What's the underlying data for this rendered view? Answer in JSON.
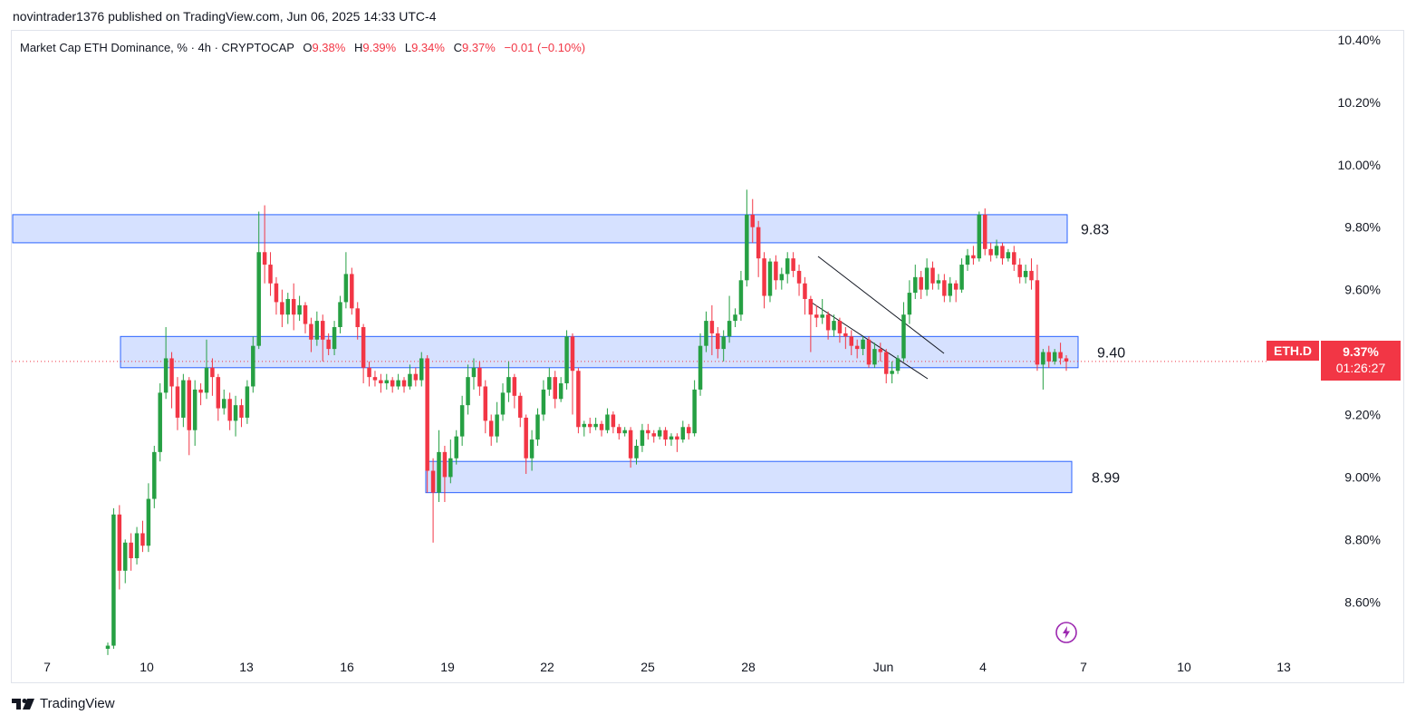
{
  "header": {
    "published": "novintrader1376 published on TradingView.com, Jun 06, 2025 14:33 UTC-4"
  },
  "legend": {
    "symbol": "Market Cap ETH Dominance, % · 4h · CRYPTOCAP",
    "open_label": "O",
    "open_value": "9.38%",
    "high_label": "H",
    "high_value": "9.39%",
    "low_label": "L",
    "low_value": "9.34%",
    "close_label": "C",
    "close_value": "9.37%",
    "change": "−0.01 (−0.10%)"
  },
  "price_tag": {
    "symbol": "ETH.D",
    "price": "9.37%",
    "countdown": "01:26:27"
  },
  "brand": {
    "name": "TradingView"
  },
  "colors": {
    "up": "#089981",
    "up_body": "#26a043",
    "down": "#f23645",
    "zone_fill": "#d2deff",
    "zone_stroke": "#2962ff"
  },
  "chart_data": {
    "type": "candlestick",
    "title": "Market Cap ETH Dominance, % · 4h · CRYPTOCAP",
    "y_unit": "%",
    "y_ticks": [
      "10.40%",
      "10.20%",
      "10.00%",
      "9.80%",
      "9.60%",
      "9.40%",
      "9.20%",
      "9.00%",
      "8.80%",
      "8.60%"
    ],
    "x_ticks": [
      "7",
      "10",
      "13",
      "16",
      "19",
      "22",
      "25",
      "28",
      "Jun",
      "4",
      "7",
      "10",
      "13"
    ],
    "ylim": [
      8.45,
      10.42
    ],
    "zones": [
      {
        "label": "9.83",
        "low": 9.75,
        "high": 9.84
      },
      {
        "label": "9.40",
        "low": 9.35,
        "high": 9.45
      },
      {
        "label": "8.99",
        "low": 8.95,
        "high": 9.05
      }
    ],
    "current_price": 9.37,
    "candles": [
      [
        8.45,
        8.46,
        8.47,
        8.43
      ],
      [
        8.46,
        8.88,
        8.9,
        8.45
      ],
      [
        8.88,
        8.7,
        8.91,
        8.64
      ],
      [
        8.7,
        8.79,
        8.8,
        8.66
      ],
      [
        8.79,
        8.74,
        8.82,
        8.7
      ],
      [
        8.74,
        8.82,
        8.84,
        8.72
      ],
      [
        8.82,
        8.78,
        8.86,
        8.76
      ],
      [
        8.78,
        8.93,
        8.98,
        8.76
      ],
      [
        8.93,
        9.08,
        9.1,
        8.9
      ],
      [
        9.08,
        9.27,
        9.3,
        9.05
      ],
      [
        9.27,
        9.38,
        9.48,
        9.25
      ],
      [
        9.38,
        9.29,
        9.4,
        9.22
      ],
      [
        9.29,
        9.19,
        9.32,
        9.15
      ],
      [
        9.19,
        9.31,
        9.33,
        9.16
      ],
      [
        9.31,
        9.15,
        9.32,
        9.07
      ],
      [
        9.15,
        9.28,
        9.31,
        9.1
      ],
      [
        9.28,
        9.27,
        9.3,
        9.23
      ],
      [
        9.27,
        9.35,
        9.44,
        9.25
      ],
      [
        9.35,
        9.32,
        9.38,
        9.26
      ],
      [
        9.32,
        9.22,
        9.33,
        9.18
      ],
      [
        9.22,
        9.25,
        9.28,
        9.2
      ],
      [
        9.25,
        9.18,
        9.27,
        9.15
      ],
      [
        9.18,
        9.23,
        9.26,
        9.13
      ],
      [
        9.23,
        9.19,
        9.25,
        9.16
      ],
      [
        9.19,
        9.29,
        9.31,
        9.17
      ],
      [
        9.29,
        9.42,
        9.45,
        9.27
      ],
      [
        9.42,
        9.72,
        9.85,
        9.41
      ],
      [
        9.72,
        9.68,
        9.87,
        9.62
      ],
      [
        9.68,
        9.62,
        9.72,
        9.58
      ],
      [
        9.62,
        9.56,
        9.64,
        9.52
      ],
      [
        9.56,
        9.52,
        9.6,
        9.48
      ],
      [
        9.52,
        9.57,
        9.59,
        9.49
      ],
      [
        9.57,
        9.52,
        9.62,
        9.47
      ],
      [
        9.52,
        9.55,
        9.58,
        9.5
      ],
      [
        9.55,
        9.49,
        9.56,
        9.46
      ],
      [
        9.49,
        9.44,
        9.51,
        9.4
      ],
      [
        9.44,
        9.5,
        9.53,
        9.42
      ],
      [
        9.5,
        9.44,
        9.52,
        9.37
      ],
      [
        9.44,
        9.41,
        9.46,
        9.39
      ],
      [
        9.41,
        9.48,
        9.5,
        9.39
      ],
      [
        9.48,
        9.56,
        9.58,
        9.46
      ],
      [
        9.56,
        9.65,
        9.72,
        9.54
      ],
      [
        9.65,
        9.54,
        9.67,
        9.52
      ],
      [
        9.54,
        9.48,
        9.56,
        9.44
      ],
      [
        9.48,
        9.35,
        9.49,
        9.3
      ],
      [
        9.35,
        9.32,
        9.37,
        9.29
      ],
      [
        9.32,
        9.31,
        9.34,
        9.29
      ],
      [
        9.31,
        9.3,
        9.33,
        9.27
      ],
      [
        9.3,
        9.31,
        9.33,
        9.28
      ],
      [
        9.31,
        9.29,
        9.32,
        9.27
      ],
      [
        9.29,
        9.31,
        9.33,
        9.28
      ],
      [
        9.31,
        9.29,
        9.32,
        9.27
      ],
      [
        9.29,
        9.33,
        9.36,
        9.28
      ],
      [
        9.33,
        9.31,
        9.35,
        9.29
      ],
      [
        9.31,
        9.38,
        9.4,
        9.29
      ],
      [
        9.38,
        9.02,
        9.39,
        8.95
      ],
      [
        9.02,
        8.95,
        9.06,
        8.79
      ],
      [
        8.95,
        9.08,
        9.15,
        8.92
      ],
      [
        9.08,
        9.0,
        9.1,
        8.92
      ],
      [
        9.0,
        9.06,
        9.12,
        8.98
      ],
      [
        9.06,
        9.13,
        9.15,
        9.04
      ],
      [
        9.13,
        9.23,
        9.26,
        9.1
      ],
      [
        9.23,
        9.32,
        9.36,
        9.2
      ],
      [
        9.32,
        9.35,
        9.38,
        9.28
      ],
      [
        9.35,
        9.29,
        9.37,
        9.26
      ],
      [
        9.29,
        9.18,
        9.31,
        9.14
      ],
      [
        9.18,
        9.13,
        9.2,
        9.1
      ],
      [
        9.13,
        9.2,
        9.24,
        9.11
      ],
      [
        9.2,
        9.27,
        9.3,
        9.18
      ],
      [
        9.27,
        9.32,
        9.37,
        9.24
      ],
      [
        9.32,
        9.26,
        9.33,
        9.22
      ],
      [
        9.26,
        9.19,
        9.27,
        9.16
      ],
      [
        9.19,
        9.06,
        9.2,
        9.01
      ],
      [
        9.06,
        9.12,
        9.15,
        9.02
      ],
      [
        9.12,
        9.2,
        9.22,
        9.1
      ],
      [
        9.2,
        9.28,
        9.31,
        9.18
      ],
      [
        9.28,
        9.32,
        9.35,
        9.26
      ],
      [
        9.32,
        9.25,
        9.34,
        9.22
      ],
      [
        9.25,
        9.3,
        9.32,
        9.24
      ],
      [
        9.3,
        9.45,
        9.47,
        9.28
      ],
      [
        9.45,
        9.34,
        9.46,
        9.2
      ],
      [
        9.34,
        9.16,
        9.35,
        9.14
      ],
      [
        9.16,
        9.17,
        9.18,
        9.13
      ],
      [
        9.17,
        9.16,
        9.19,
        9.14
      ],
      [
        9.16,
        9.17,
        9.19,
        9.15
      ],
      [
        9.17,
        9.15,
        9.18,
        9.13
      ],
      [
        9.15,
        9.2,
        9.22,
        9.14
      ],
      [
        9.2,
        9.16,
        9.21,
        9.14
      ],
      [
        9.16,
        9.14,
        9.17,
        9.12
      ],
      [
        9.14,
        9.15,
        9.16,
        9.13
      ],
      [
        9.15,
        9.06,
        9.16,
        9.03
      ],
      [
        9.06,
        9.1,
        9.12,
        9.04
      ],
      [
        9.1,
        9.15,
        9.17,
        9.08
      ],
      [
        9.15,
        9.14,
        9.17,
        9.12
      ],
      [
        9.14,
        9.13,
        9.15,
        9.11
      ],
      [
        9.13,
        9.15,
        9.16,
        9.12
      ],
      [
        9.15,
        9.12,
        9.16,
        9.1
      ],
      [
        9.12,
        9.13,
        9.14,
        9.1
      ],
      [
        9.13,
        9.12,
        9.14,
        9.08
      ],
      [
        9.12,
        9.16,
        9.18,
        9.11
      ],
      [
        9.16,
        9.14,
        9.17,
        9.12
      ],
      [
        9.14,
        9.28,
        9.31,
        9.13
      ],
      [
        9.28,
        9.42,
        9.46,
        9.26
      ],
      [
        9.42,
        9.5,
        9.53,
        9.4
      ],
      [
        9.5,
        9.46,
        9.55,
        9.39
      ],
      [
        9.46,
        9.41,
        9.48,
        9.38
      ],
      [
        9.41,
        9.45,
        9.47,
        9.37
      ],
      [
        9.45,
        9.5,
        9.58,
        9.43
      ],
      [
        9.5,
        9.52,
        9.54,
        9.48
      ],
      [
        9.52,
        9.63,
        9.66,
        9.5
      ],
      [
        9.63,
        9.84,
        9.92,
        9.61
      ],
      [
        9.84,
        9.8,
        9.89,
        9.75
      ],
      [
        9.8,
        9.7,
        9.82,
        9.64
      ],
      [
        9.7,
        9.58,
        9.72,
        9.54
      ],
      [
        9.58,
        9.69,
        9.7,
        9.56
      ],
      [
        9.69,
        9.63,
        9.71,
        9.6
      ],
      [
        9.63,
        9.65,
        9.67,
        9.6
      ],
      [
        9.65,
        9.7,
        9.72,
        9.62
      ],
      [
        9.7,
        9.66,
        9.72,
        9.64
      ],
      [
        9.66,
        9.62,
        9.68,
        9.58
      ],
      [
        9.62,
        9.57,
        9.64,
        9.52
      ],
      [
        9.57,
        9.52,
        9.58,
        9.4
      ],
      [
        9.52,
        9.51,
        9.55,
        9.48
      ],
      [
        9.51,
        9.52,
        9.57,
        9.49
      ],
      [
        9.52,
        9.47,
        9.53,
        9.44
      ],
      [
        9.47,
        9.5,
        9.52,
        9.45
      ],
      [
        9.5,
        9.46,
        9.51,
        9.43
      ],
      [
        9.46,
        9.45,
        9.48,
        9.41
      ],
      [
        9.45,
        9.42,
        9.47,
        9.39
      ],
      [
        9.42,
        9.41,
        9.44,
        9.38
      ],
      [
        9.41,
        9.44,
        9.45,
        9.39
      ],
      [
        9.44,
        9.36,
        9.45,
        9.35
      ],
      [
        9.36,
        9.41,
        9.43,
        9.35
      ],
      [
        9.41,
        9.4,
        9.43,
        9.37
      ],
      [
        9.4,
        9.33,
        9.41,
        9.3
      ],
      [
        9.33,
        9.34,
        9.37,
        9.3
      ],
      [
        9.34,
        9.38,
        9.39,
        9.33
      ],
      [
        9.38,
        9.52,
        9.56,
        9.37
      ],
      [
        9.52,
        9.59,
        9.63,
        9.49
      ],
      [
        9.59,
        9.64,
        9.68,
        9.57
      ],
      [
        9.64,
        9.6,
        9.66,
        9.57
      ],
      [
        9.6,
        9.67,
        9.7,
        9.58
      ],
      [
        9.67,
        9.62,
        9.69,
        9.6
      ],
      [
        9.62,
        9.63,
        9.65,
        9.6
      ],
      [
        9.63,
        9.58,
        9.65,
        9.56
      ],
      [
        9.58,
        9.62,
        9.64,
        9.56
      ],
      [
        9.62,
        9.6,
        9.63,
        9.56
      ],
      [
        9.6,
        9.68,
        9.7,
        9.59
      ],
      [
        9.68,
        9.71,
        9.73,
        9.66
      ],
      [
        9.71,
        9.7,
        9.74,
        9.68
      ],
      [
        9.7,
        9.84,
        9.85,
        9.69
      ],
      [
        9.84,
        9.73,
        9.86,
        9.71
      ],
      [
        9.73,
        9.71,
        9.75,
        9.69
      ],
      [
        9.71,
        9.74,
        9.76,
        9.7
      ],
      [
        9.74,
        9.7,
        9.75,
        9.68
      ],
      [
        9.7,
        9.72,
        9.73,
        9.69
      ],
      [
        9.72,
        9.68,
        9.74,
        9.66
      ],
      [
        9.68,
        9.64,
        9.7,
        9.62
      ],
      [
        9.64,
        9.66,
        9.68,
        9.62
      ],
      [
        9.66,
        9.63,
        9.7,
        9.6
      ],
      [
        9.63,
        9.36,
        9.68,
        9.34
      ],
      [
        9.36,
        9.4,
        9.41,
        9.28
      ],
      [
        9.4,
        9.37,
        9.42,
        9.35
      ],
      [
        9.37,
        9.4,
        9.41,
        9.36
      ],
      [
        9.4,
        9.38,
        9.43,
        9.36
      ],
      [
        9.38,
        9.37,
        9.39,
        9.34
      ]
    ]
  }
}
